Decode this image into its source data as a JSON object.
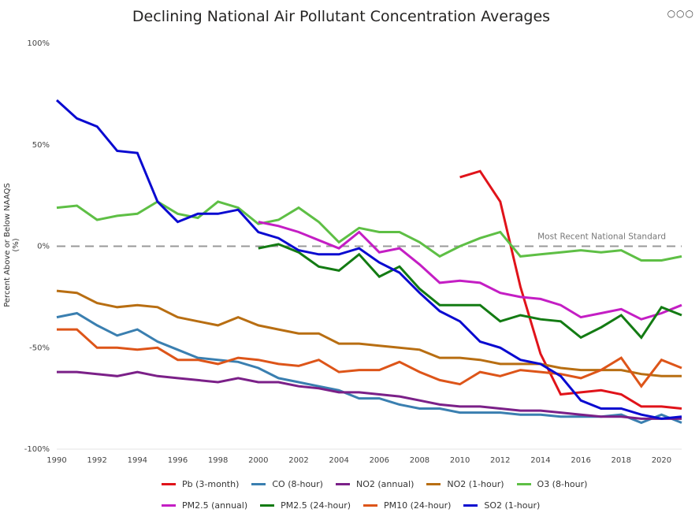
{
  "header": {
    "title": "Declining National Air Pollutant Concentration Averages",
    "more_options_glyph": "○○○"
  },
  "chart_data": {
    "type": "line",
    "title": "Declining National Air Pollutant Concentration Averages",
    "xlabel": "",
    "ylabel": "Percent Above or Below NAAQS (%)",
    "xlim": [
      1990,
      2021
    ],
    "ylim": [
      -100,
      100
    ],
    "x_ticks": [
      "1990",
      "1992",
      "1994",
      "1996",
      "1998",
      "2000",
      "2002",
      "2004",
      "2006",
      "2008",
      "2010",
      "2012",
      "2014",
      "2016",
      "2018",
      "2020"
    ],
    "y_ticks": [
      "100%",
      "50%",
      "0%",
      "-50%",
      "-100%"
    ],
    "reference_line": {
      "value": 0,
      "label": "Most Recent National Standard",
      "style": "dashed",
      "color": "#999999"
    },
    "legend_position": "bottom",
    "x": [
      1990,
      1991,
      1992,
      1993,
      1994,
      1995,
      1996,
      1997,
      1998,
      1999,
      2000,
      2001,
      2002,
      2003,
      2004,
      2005,
      2006,
      2007,
      2008,
      2009,
      2010,
      2011,
      2012,
      2013,
      2014,
      2015,
      2016,
      2017,
      2018,
      2019,
      2020,
      2021
    ],
    "series": [
      {
        "name": "Pb (3-month)",
        "color": "#e0131a",
        "start": 2010,
        "values": [
          34,
          37,
          22,
          -20,
          -53,
          -73,
          -72,
          -71,
          -73,
          -79,
          -79,
          -80
        ]
      },
      {
        "name": "CO (8-hour)",
        "color": "#3a7fb0",
        "start": 1990,
        "values": [
          -35,
          -33,
          -39,
          -44,
          -41,
          -47,
          -51,
          -55,
          -56,
          -57,
          -60,
          -65,
          -67,
          -69,
          -71,
          -75,
          -75,
          -78,
          -80,
          -80,
          -82,
          -82,
          -82,
          -83,
          -83,
          -84,
          -84,
          -84,
          -83,
          -87,
          -83,
          -87
        ]
      },
      {
        "name": "NO2 (annual)",
        "color": "#7b2088",
        "start": 1990,
        "values": [
          -62,
          -62,
          -63,
          -64,
          -62,
          -64,
          -65,
          -66,
          -67,
          -65,
          -67,
          -67,
          -69,
          -70,
          -72,
          -72,
          -73,
          -74,
          -76,
          -78,
          -79,
          -79,
          -80,
          -81,
          -81,
          -82,
          -83,
          -84,
          -84,
          -85,
          -85,
          -85
        ]
      },
      {
        "name": "NO2 (1-hour)",
        "color": "#b86e12",
        "start": 1990,
        "values": [
          -22,
          -23,
          -28,
          -30,
          -29,
          -30,
          -35,
          -37,
          -39,
          -35,
          -39,
          -41,
          -43,
          -43,
          -48,
          -48,
          -49,
          -50,
          -51,
          -55,
          -55,
          -56,
          -58,
          -58,
          -58,
          -60,
          -61,
          -61,
          -61,
          -63,
          -64,
          -64
        ]
      },
      {
        "name": "O3 (8-hour)",
        "color": "#5ebf45",
        "start": 1990,
        "values": [
          19,
          20,
          13,
          15,
          16,
          22,
          16,
          14,
          22,
          19,
          11,
          13,
          19,
          12,
          2,
          9,
          7,
          7,
          2,
          -5,
          0,
          4,
          7,
          -5,
          -4,
          -3,
          -2,
          -3,
          -2,
          -7,
          -7,
          -5
        ]
      },
      {
        "name": "PM2.5 (annual)",
        "color": "#c41ec4",
        "start": 2000,
        "values": [
          12,
          10,
          7,
          3,
          -1,
          7,
          -3,
          -1,
          -9,
          -18,
          -17,
          -18,
          -23,
          -25,
          -26,
          -29,
          -35,
          -33,
          -31,
          -36,
          -33,
          -29
        ]
      },
      {
        "name": "PM2.5 (24-hour)",
        "color": "#137b13",
        "start": 2000,
        "values": [
          -1,
          1,
          -3,
          -10,
          -12,
          -4,
          -15,
          -10,
          -21,
          -29,
          -29,
          -29,
          -37,
          -34,
          -36,
          -37,
          -45,
          -40,
          -34,
          -45,
          -30,
          -34
        ]
      },
      {
        "name": "PM10 (24-hour)",
        "color": "#dd5519",
        "start": 1990,
        "values": [
          -41,
          -41,
          -50,
          -50,
          -51,
          -50,
          -56,
          -56,
          -58,
          -55,
          -56,
          -58,
          -59,
          -56,
          -62,
          -61,
          -61,
          -57,
          -62,
          -66,
          -68,
          -62,
          -64,
          -61,
          -62,
          -63,
          -65,
          -61,
          -55,
          -69,
          -56,
          -60
        ]
      },
      {
        "name": "SO2 (1-hour)",
        "color": "#0a0ad0",
        "start": 1990,
        "values": [
          72,
          63,
          59,
          47,
          46,
          22,
          12,
          16,
          16,
          18,
          7,
          4,
          -2,
          -4,
          -4,
          -1,
          -8,
          -13,
          -23,
          -32,
          -37,
          -47,
          -50,
          -56,
          -58,
          -64,
          -76,
          -80,
          -80,
          -83,
          -85,
          -84
        ]
      }
    ]
  },
  "legend": {
    "rows": [
      [
        0,
        1,
        2,
        3,
        4
      ],
      [
        5,
        6,
        7,
        8
      ]
    ]
  }
}
